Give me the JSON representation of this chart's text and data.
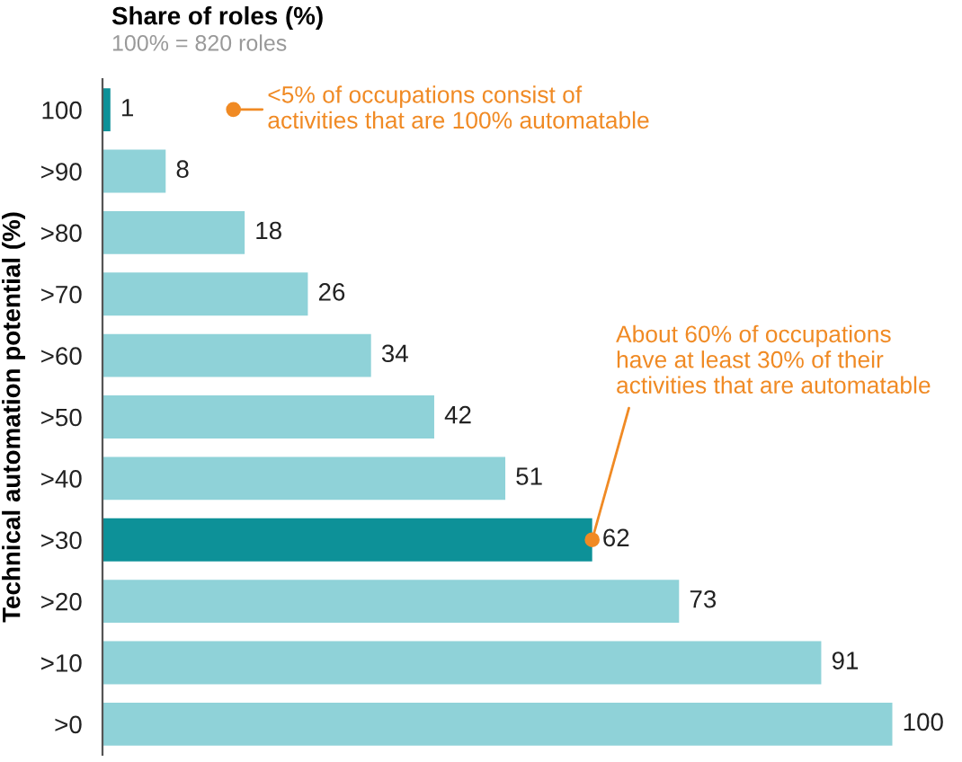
{
  "chart_data": {
    "type": "bar",
    "orientation": "horizontal",
    "title": "Share of roles (%)",
    "subtitle": "100% = 820 roles",
    "ylabel": "Technical automation potential (%)",
    "categories": [
      "100",
      ">90",
      ">80",
      ">70",
      ">60",
      ">50",
      ">40",
      ">30",
      ">20",
      ">10",
      ">0"
    ],
    "values": [
      1,
      8,
      18,
      26,
      34,
      42,
      51,
      62,
      73,
      91,
      100
    ],
    "colors": [
      "#0d9198",
      "#8fd2d8",
      "#8fd2d8",
      "#8fd2d8",
      "#8fd2d8",
      "#8fd2d8",
      "#8fd2d8",
      "#0d9198",
      "#8fd2d8",
      "#8fd2d8",
      "#8fd2d8"
    ],
    "data_labels": true,
    "annotations": [
      "<5% of occupations consist of\nactivities that are 100% automatable",
      {
        "text": "About 60% of occupations\nhave at least 30% of their\nactivities that are automatable",
        "x": 62,
        "y": ">30"
      }
    ]
  }
}
